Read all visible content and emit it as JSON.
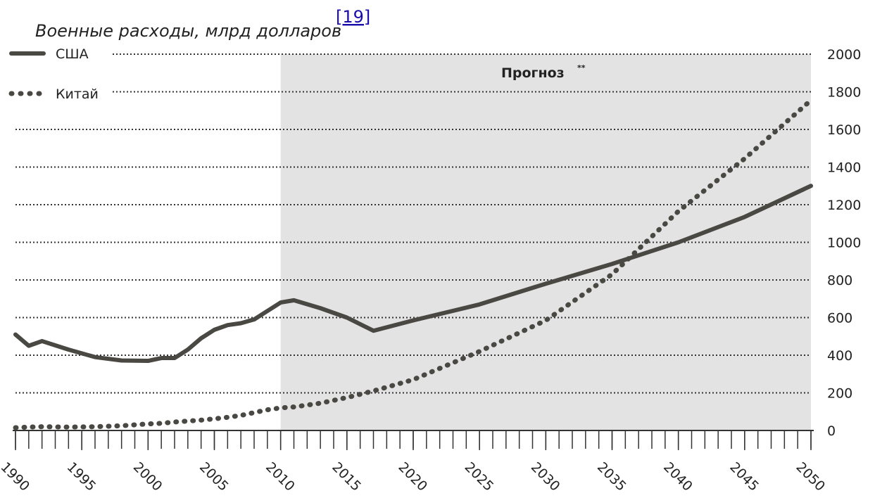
{
  "chart_data": {
    "type": "line",
    "title": "Военные расходы, млрд долларов",
    "title_note": "[19]",
    "forecast": {
      "label": "Прогноз",
      "note": "**",
      "start": 2010
    },
    "x": [
      1990,
      1991,
      1992,
      1994,
      1996,
      1998,
      2000,
      2001,
      2002,
      2003,
      2004,
      2005,
      2006,
      2007,
      2008,
      2009,
      2010,
      2011,
      2013,
      2015,
      2017,
      2020,
      2025,
      2030,
      2035,
      2040,
      2045,
      2050
    ],
    "series": [
      {
        "name": "США",
        "color": "#4a4843",
        "style": "solid",
        "values": [
          510,
          450,
          475,
          430,
          390,
          372,
          370,
          385,
          385,
          430,
          490,
          535,
          560,
          570,
          590,
          635,
          680,
          692,
          650,
          600,
          530,
          585,
          670,
          780,
          885,
          1000,
          1135,
          1300
        ]
      },
      {
        "name": "Китай",
        "color": "#4a4843",
        "style": "dotted",
        "values": [
          15,
          18,
          20,
          18,
          20,
          25,
          35,
          38,
          45,
          50,
          55,
          62,
          70,
          80,
          95,
          110,
          120,
          125,
          145,
          175,
          210,
          270,
          420,
          585,
          830,
          1165,
          1445,
          1755
        ]
      }
    ],
    "xlim": [
      1990,
      2050
    ],
    "xticks": [
      1990,
      1995,
      2000,
      2005,
      2010,
      2015,
      2020,
      2025,
      2030,
      2035,
      2040,
      2045,
      2050
    ],
    "ylim": [
      0,
      2000
    ],
    "yticks": [
      0,
      200,
      400,
      600,
      800,
      1000,
      1200,
      1400,
      1600,
      1800,
      2000
    ],
    "grid": true
  }
}
